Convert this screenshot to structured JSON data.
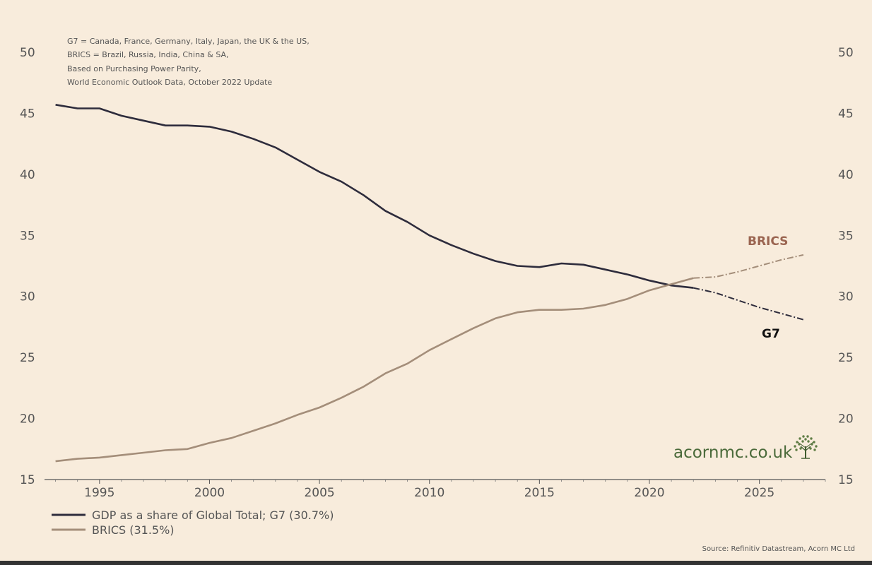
{
  "notes": [
    "G7 = Canada, France, Germany, Italy, Japan, the UK & the US,",
    "BRICS = Brazil, Russia, India, China & SA,",
    "Based on Purchasing Power Parity,",
    "World Economic Outlook Data, October 2022 Update"
  ],
  "source": "Source: Refinitiv Datastream, Acorn MC Ltd",
  "logo": {
    "text": "acornmc.co.uk",
    "icon": "tree-icon"
  },
  "colors": {
    "g7": "#2e2c3c",
    "brics": "#a48e7a",
    "brics_label": "#9a6450",
    "background": "#f8ecdc"
  },
  "chart_data": {
    "type": "line",
    "xlim": [
      1992.5,
      2028
    ],
    "ylim": [
      15,
      50
    ],
    "x_ticks": [
      "1995",
      "2000",
      "2005",
      "2010",
      "2015",
      "2020",
      "2025"
    ],
    "y_ticks": [
      "15",
      "20",
      "25",
      "30",
      "35",
      "40",
      "45",
      "50"
    ],
    "y_axis": "both sides",
    "grid": false,
    "legend_position": "bottom-left",
    "forecast_start": 2022,
    "series": [
      {
        "name": "GDP as a share of Global Total; G7 (30.7%)",
        "end_label": "G7",
        "x": [
          1993,
          1994,
          1995,
          1996,
          1997,
          1998,
          1999,
          2000,
          2001,
          2002,
          2003,
          2004,
          2005,
          2006,
          2007,
          2008,
          2009,
          2010,
          2011,
          2012,
          2013,
          2014,
          2015,
          2016,
          2017,
          2018,
          2019,
          2020,
          2021,
          2022,
          2023,
          2024,
          2025,
          2026,
          2027
        ],
        "values": [
          45.7,
          45.4,
          45.4,
          44.8,
          44.4,
          44.0,
          44.0,
          43.9,
          43.5,
          42.9,
          42.2,
          41.2,
          40.2,
          39.4,
          38.3,
          37.0,
          36.1,
          35.0,
          34.2,
          33.5,
          32.9,
          32.5,
          32.4,
          32.7,
          32.6,
          32.2,
          31.8,
          31.3,
          30.9,
          30.7,
          30.3,
          29.7,
          29.1,
          28.6,
          28.1
        ]
      },
      {
        "name": "BRICS (31.5%)",
        "end_label": "BRICS",
        "x": [
          1993,
          1994,
          1995,
          1996,
          1997,
          1998,
          1999,
          2000,
          2001,
          2002,
          2003,
          2004,
          2005,
          2006,
          2007,
          2008,
          2009,
          2010,
          2011,
          2012,
          2013,
          2014,
          2015,
          2016,
          2017,
          2018,
          2019,
          2020,
          2021,
          2022,
          2023,
          2024,
          2025,
          2026,
          2027
        ],
        "values": [
          16.5,
          16.7,
          16.8,
          17.0,
          17.2,
          17.4,
          17.5,
          18.0,
          18.4,
          19.0,
          19.6,
          20.3,
          20.9,
          21.7,
          22.6,
          23.7,
          24.5,
          25.6,
          26.5,
          27.4,
          28.2,
          28.7,
          28.9,
          28.9,
          29.0,
          29.3,
          29.8,
          30.5,
          31.0,
          31.5,
          31.6,
          32.0,
          32.5,
          33.0,
          33.4
        ]
      }
    ]
  }
}
